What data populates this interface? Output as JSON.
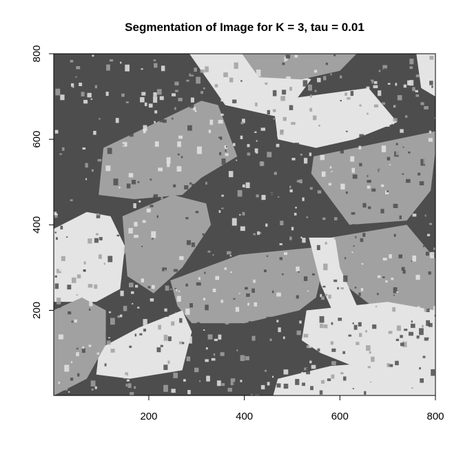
{
  "title": "Segmentation of Image for K = 3, tau = 0.01",
  "chart_data": {
    "type": "heatmap",
    "title": "Segmentation of Image for K = 3, tau = 0.01",
    "xlabel": "",
    "ylabel": "",
    "xlim": [
      1,
      800
    ],
    "ylim": [
      1,
      800
    ],
    "x_ticks": [
      200,
      400,
      600,
      800
    ],
    "y_ticks": [
      200,
      400,
      600,
      800
    ],
    "x_tick_labels": [
      "200",
      "400",
      "600",
      "800"
    ],
    "y_tick_labels": [
      "200",
      "400",
      "600",
      "800"
    ],
    "clusters": 3,
    "cluster_colors": [
      "#4d4d4d",
      "#a1a1a1",
      "#e4e4e4"
    ],
    "regions": [
      {
        "name": "bright-band-top-center",
        "cluster": 3,
        "corners": [
          [
            285,
            800
          ],
          [
            395,
            800
          ],
          [
            540,
            740
          ],
          [
            480,
            650
          ],
          [
            360,
            680
          ]
        ]
      },
      {
        "name": "gray-field-top-right",
        "cluster": 2,
        "corners": [
          [
            395,
            800
          ],
          [
            635,
            800
          ],
          [
            600,
            760
          ],
          [
            520,
            740
          ],
          [
            430,
            745
          ]
        ]
      },
      {
        "name": "bright-field-upper-right",
        "cluster": 3,
        "corners": [
          [
            460,
            690
          ],
          [
            660,
            720
          ],
          [
            720,
            640
          ],
          [
            630,
            600
          ],
          [
            550,
            580
          ],
          [
            470,
            600
          ]
        ]
      },
      {
        "name": "bright-top-right-corner",
        "cluster": 3,
        "corners": [
          [
            760,
            800
          ],
          [
            800,
            800
          ],
          [
            800,
            700
          ],
          [
            770,
            720
          ]
        ]
      },
      {
        "name": "gray-field-upper-left",
        "cluster": 2,
        "corners": [
          [
            105,
            580
          ],
          [
            310,
            690
          ],
          [
            345,
            680
          ],
          [
            385,
            560
          ],
          [
            310,
            510
          ],
          [
            270,
            470
          ],
          [
            170,
            460
          ],
          [
            95,
            470
          ]
        ]
      },
      {
        "name": "gray-field-right",
        "cluster": 2,
        "corners": [
          [
            545,
            560
          ],
          [
            805,
            620
          ],
          [
            790,
            480
          ],
          [
            740,
            410
          ],
          [
            620,
            400
          ],
          [
            580,
            460
          ],
          [
            540,
            520
          ]
        ]
      },
      {
        "name": "gray-field-center-left",
        "cluster": 2,
        "corners": [
          [
            145,
            420
          ],
          [
            250,
            470
          ],
          [
            320,
            450
          ],
          [
            330,
            400
          ],
          [
            270,
            300
          ],
          [
            210,
            240
          ],
          [
            155,
            280
          ]
        ]
      },
      {
        "name": "gray-field-center",
        "cluster": 2,
        "corners": [
          [
            245,
            270
          ],
          [
            390,
            330
          ],
          [
            480,
            340
          ],
          [
            575,
            350
          ],
          [
            550,
            230
          ],
          [
            515,
            200
          ],
          [
            400,
            170
          ],
          [
            290,
            170
          ],
          [
            260,
            210
          ]
        ]
      },
      {
        "name": "gray-field-right-lower",
        "cluster": 2,
        "corners": [
          [
            580,
            370
          ],
          [
            740,
            400
          ],
          [
            800,
            320
          ],
          [
            800,
            200
          ],
          [
            690,
            190
          ],
          [
            610,
            260
          ]
        ]
      },
      {
        "name": "bright-strip-lower-right",
        "cluster": 3,
        "corners": [
          [
            535,
            370
          ],
          [
            590,
            370
          ],
          [
            600,
            300
          ],
          [
            640,
            200
          ],
          [
            600,
            160
          ],
          [
            560,
            260
          ]
        ]
      },
      {
        "name": "bright-field-bottom-right",
        "cluster": 3,
        "corners": [
          [
            530,
            200
          ],
          [
            700,
            220
          ],
          [
            800,
            200
          ],
          [
            800,
            60
          ],
          [
            650,
            60
          ],
          [
            560,
            100
          ],
          [
            520,
            130
          ]
        ]
      },
      {
        "name": "bright-field-bottom-left",
        "cluster": 3,
        "corners": [
          [
            96,
            110
          ],
          [
            180,
            160
          ],
          [
            270,
            200
          ],
          [
            290,
            150
          ],
          [
            270,
            60
          ],
          [
            160,
            40
          ],
          [
            90,
            50
          ]
        ]
      },
      {
        "name": "bright-area-left",
        "cluster": 3,
        "corners": [
          [
            0,
            390
          ],
          [
            70,
            430
          ],
          [
            120,
            420
          ],
          [
            150,
            350
          ],
          [
            140,
            250
          ],
          [
            90,
            220
          ],
          [
            0,
            220
          ]
        ]
      },
      {
        "name": "gray-area-bottom-left",
        "cluster": 2,
        "corners": [
          [
            0,
            200
          ],
          [
            60,
            230
          ],
          [
            110,
            200
          ],
          [
            110,
            120
          ],
          [
            70,
            40
          ],
          [
            0,
            0
          ]
        ]
      },
      {
        "name": "bright-oval-bottom-center",
        "cluster": 3,
        "corners": [
          [
            470,
            40
          ],
          [
            580,
            70
          ],
          [
            700,
            80
          ],
          [
            800,
            60
          ],
          [
            800,
            0
          ],
          [
            460,
            0
          ]
        ]
      }
    ]
  }
}
